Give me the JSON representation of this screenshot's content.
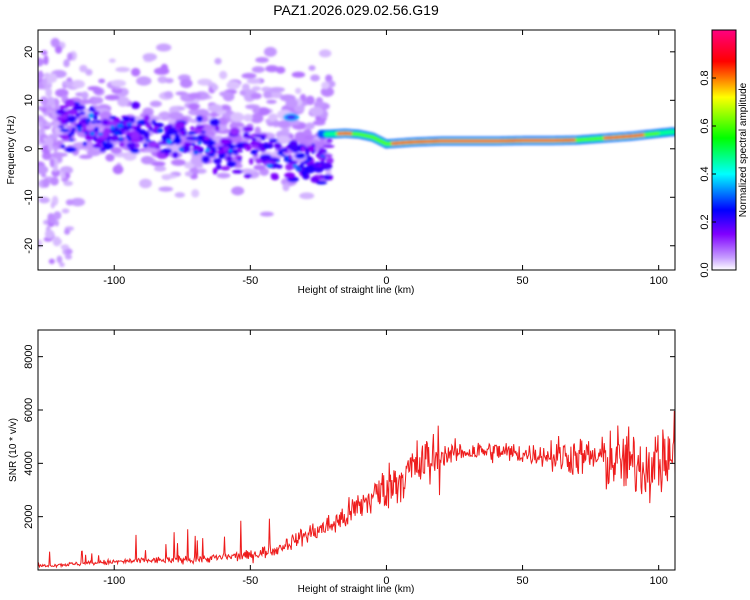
{
  "title": "PAZ1.2026.029.02.56.G19",
  "chart_data": [
    {
      "type": "heatmap",
      "xlabel": "Height of straight line (km)",
      "ylabel": "Frequency (Hz)",
      "xlim": [
        -128,
        106
      ],
      "ylim": [
        -25,
        24.5
      ],
      "xticks": [
        -100,
        -50,
        0,
        50,
        100
      ],
      "yticks": [
        -20,
        -10,
        0,
        10,
        20
      ],
      "xtick_labels": [
        "-100",
        "-50",
        "0",
        "50",
        "100"
      ],
      "ytick_labels": [
        "-20",
        "-10",
        "0",
        "10",
        "20"
      ],
      "colorbar": {
        "label": "Normalized spectral amplitude",
        "range": [
          0,
          1
        ],
        "ticks": [
          0,
          0.2,
          0.4,
          0.6,
          0.8
        ],
        "tick_labels": [
          "0.0",
          "0.2",
          "0.4",
          "0.6",
          "0.8"
        ],
        "colors": [
          "#ffffff",
          "#8000ff",
          "#0000ff",
          "#00ffff",
          "#00ff00",
          "#ffff00",
          "#ff0000",
          "#ff0080"
        ]
      },
      "description_points": {
        "ridge_km": [
          -22,
          -15,
          -10,
          -5,
          0,
          10,
          20,
          30,
          40,
          50,
          60,
          70,
          80,
          90,
          100,
          105
        ],
        "ridge_hz": [
          3,
          3.2,
          3,
          2.4,
          1,
          1.4,
          1.6,
          1.6,
          1.6,
          1.7,
          1.7,
          1.8,
          2.2,
          2.6,
          3.2,
          3.5
        ]
      }
    },
    {
      "type": "line",
      "xlabel": "Height of straight line (km)",
      "ylabel": "SNR (10 * v/v)",
      "xlim": [
        -128,
        106
      ],
      "ylim": [
        0,
        9000
      ],
      "xticks": [
        -100,
        -50,
        0,
        50,
        100
      ],
      "yticks": [
        2000,
        4000,
        6000,
        8000
      ],
      "xtick_labels": [
        "-100",
        "-50",
        "0",
        "50",
        "100"
      ],
      "ytick_labels": [
        "2000",
        "4000",
        "6000",
        "8000"
      ],
      "color": "#ff0000",
      "envelope_x": [
        -128,
        -110,
        -90,
        -70,
        -50,
        -40,
        -30,
        -20,
        -15,
        -10,
        -5,
        0,
        5,
        10,
        20,
        30,
        40,
        50,
        60,
        70,
        80,
        90,
        95,
        100,
        103,
        106
      ],
      "envelope_y": [
        150,
        250,
        350,
        400,
        550,
        800,
        1300,
        1700,
        2000,
        2400,
        2750,
        3100,
        3450,
        3800,
        4300,
        4450,
        4450,
        4350,
        4300,
        4250,
        4200,
        4000,
        3900,
        4000,
        4200,
        4300
      ]
    }
  ]
}
